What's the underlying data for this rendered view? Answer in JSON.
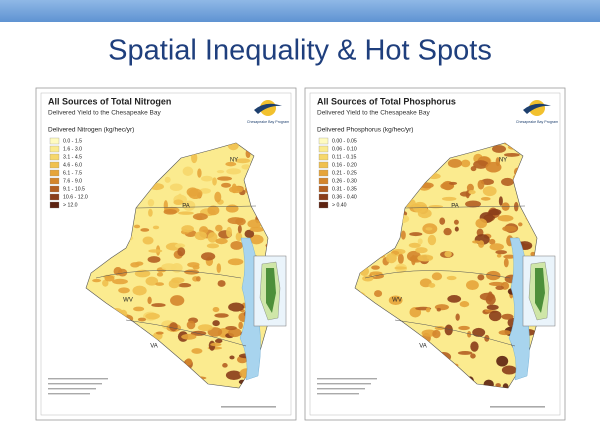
{
  "slide": {
    "title": "Spatial Inequality & Hot Spots"
  },
  "panels": [
    {
      "title": "All Sources of Total Nitrogen",
      "subtitle": "Delivered Yield to the Chesapeake Bay",
      "logo_text": "Chesapeake Bay Program",
      "legend_title": "Delivered Nitrogen (kg/hec/yr)",
      "legend": [
        {
          "label": "0.0 - 1.5",
          "color": "#fffbc0"
        },
        {
          "label": "1.6 - 3.0",
          "color": "#fbeb8f"
        },
        {
          "label": "3.1 - 4.5",
          "color": "#f6d76b"
        },
        {
          "label": "4.6 - 6.0",
          "color": "#f0c04f"
        },
        {
          "label": "6.1 - 7.5",
          "color": "#e6a43a"
        },
        {
          "label": "7.6 - 9.0",
          "color": "#d4852c"
        },
        {
          "label": "9.1 - 10.5",
          "color": "#b45f22"
        },
        {
          "label": "10.6 - 12.0",
          "color": "#8a3d1a"
        },
        {
          "label": "> 12.0",
          "color": "#5c2210"
        }
      ],
      "state_labels": [
        "NY",
        "PA",
        "WV",
        "VA"
      ]
    },
    {
      "title": "All Sources of Total Phosphorus",
      "subtitle": "Delivered Yield to the Chesapeake Bay",
      "logo_text": "Chesapeake Bay Program",
      "legend_title": "Delivered Phosphorus (kg/hec/yr)",
      "legend": [
        {
          "label": "0.00 - 0.05",
          "color": "#fffbc0"
        },
        {
          "label": "0.06 - 0.10",
          "color": "#fbeb8f"
        },
        {
          "label": "0.11 - 0.15",
          "color": "#f6d76b"
        },
        {
          "label": "0.16 - 0.20",
          "color": "#f0c04f"
        },
        {
          "label": "0.21 - 0.25",
          "color": "#e6a43a"
        },
        {
          "label": "0.26 - 0.30",
          "color": "#d4852c"
        },
        {
          "label": "0.31 - 0.35",
          "color": "#b45f22"
        },
        {
          "label": "0.36 - 0.40",
          "color": "#8a3d1a"
        },
        {
          "label": "> 0.40",
          "color": "#5c2210"
        }
      ],
      "state_labels": [
        "NY",
        "PA",
        "WV",
        "VA"
      ]
    }
  ]
}
